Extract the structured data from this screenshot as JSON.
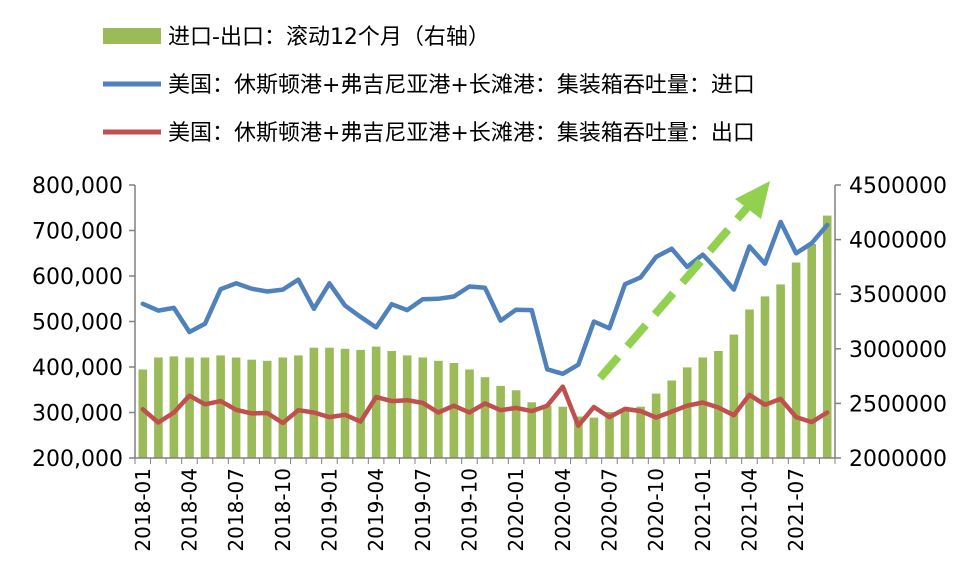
{
  "chart_data": {
    "type": "bar+line",
    "title": "",
    "legend_position": "top-left",
    "grid": false,
    "colors": {
      "bars": "#9bbb59",
      "import_line": "#4f81bd",
      "export_line": "#c0504d",
      "arrow": "#92d050"
    },
    "categories": [
      "2018-01",
      "2018-02",
      "2018-03",
      "2018-04",
      "2018-05",
      "2018-06",
      "2018-07",
      "2018-08",
      "2018-09",
      "2018-10",
      "2018-11",
      "2018-12",
      "2019-01",
      "2019-02",
      "2019-03",
      "2019-04",
      "2019-05",
      "2019-06",
      "2019-07",
      "2019-08",
      "2019-09",
      "2019-10",
      "2019-11",
      "2019-12",
      "2020-01",
      "2020-02",
      "2020-03",
      "2020-04",
      "2020-05",
      "2020-06",
      "2020-07",
      "2020-08",
      "2020-09",
      "2020-10",
      "2020-11",
      "2020-12",
      "2021-01",
      "2021-02",
      "2021-03",
      "2021-04",
      "2021-05",
      "2021-06",
      "2021-07",
      "2021-08",
      "2021-09"
    ],
    "x_tick_labels": [
      "2018-01",
      "2018-04",
      "2018-07",
      "2018-10",
      "2019-01",
      "2019-04",
      "2019-07",
      "2019-10",
      "2020-01",
      "2020-04",
      "2020-07",
      "2020-10",
      "2021-01",
      "2021-04",
      "2021-07"
    ],
    "left_axis": {
      "ylim": [
        200000,
        800000
      ],
      "ticks": [
        "200,000",
        "300,000",
        "400,000",
        "500,000",
        "600,000",
        "700,000",
        "800,000"
      ]
    },
    "right_axis": {
      "ylim": [
        2000000,
        4500000
      ],
      "ticks": [
        "2000000",
        "2500000",
        "3000000",
        "3500000",
        "4000000",
        "4500000"
      ]
    },
    "series": [
      {
        "name": "进口-出口：滚动12个月（右轴）",
        "kind": "bar",
        "axis": "right",
        "values": [
          2810000,
          2920000,
          2930000,
          2920000,
          2920000,
          2940000,
          2920000,
          2900000,
          2890000,
          2920000,
          2940000,
          3010000,
          3010000,
          3000000,
          2990000,
          3020000,
          2980000,
          2940000,
          2920000,
          2890000,
          2870000,
          2810000,
          2740000,
          2660000,
          2620000,
          2510000,
          2480000,
          2470000,
          2380000,
          2370000,
          2420000,
          2430000,
          2470000,
          2590000,
          2710000,
          2830000,
          2920000,
          2980000,
          3130000,
          3360000,
          3480000,
          3590000,
          3790000,
          3960000,
          4220000
        ]
      },
      {
        "name": "美国：休斯顿港+弗吉尼亚港+长滩港：集装箱吞吐量：进口",
        "kind": "line",
        "axis": "left",
        "values": [
          539000,
          524000,
          530000,
          477000,
          495000,
          571000,
          584000,
          572000,
          566000,
          570000,
          592000,
          528000,
          584000,
          535000,
          510000,
          487000,
          538000,
          525000,
          549000,
          550000,
          555000,
          577000,
          574000,
          502000,
          526000,
          525000,
          395000,
          385000,
          405000,
          500000,
          485000,
          582000,
          597000,
          642000,
          660000,
          620000,
          647000,
          610000,
          570000,
          665000,
          627000,
          719000,
          650000,
          672000,
          712000
        ]
      },
      {
        "name": "美国：休斯顿港+弗吉尼亚港+长滩港：集装箱吞吐量：出口",
        "kind": "line",
        "axis": "left",
        "values": [
          307000,
          278000,
          300000,
          337000,
          318000,
          325000,
          306000,
          298000,
          299000,
          277000,
          305000,
          300000,
          290000,
          295000,
          280000,
          334000,
          325000,
          327000,
          321000,
          300000,
          315000,
          300000,
          320000,
          305000,
          310000,
          303000,
          315000,
          357000,
          271000,
          312000,
          290000,
          308000,
          303000,
          289000,
          302000,
          315000,
          322000,
          311000,
          294000,
          339000,
          317000,
          330000,
          290000,
          279000,
          300000
        ]
      }
    ]
  }
}
